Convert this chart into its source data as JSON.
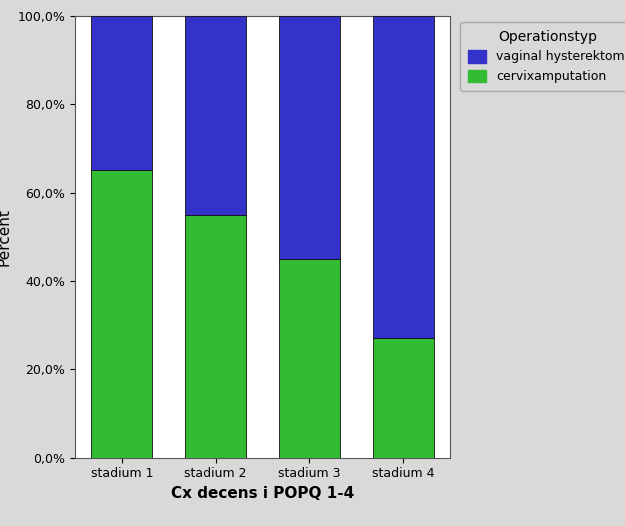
{
  "categories": [
    "stadium 1",
    "stadium 2",
    "stadium 3",
    "stadium 4"
  ],
  "cervix_values": [
    65.0,
    55.0,
    45.0,
    27.0
  ],
  "vaginal_values": [
    35.0,
    45.0,
    55.0,
    73.0
  ],
  "cervix_color": "#33bb33",
  "vaginal_color": "#3333cc",
  "bar_edge_color": "#111111",
  "bar_edge_width": 0.6,
  "bar_width": 0.65,
  "ylabel": "Percent",
  "xlabel": "Cx decens i POPQ 1-4",
  "yticks": [
    0,
    20,
    40,
    60,
    80,
    100
  ],
  "ytick_labels": [
    "0,0%",
    "20,0%",
    "40,0%",
    "60,0%",
    "80,0%",
    "100,0%"
  ],
  "legend_title": "Operationstyp",
  "legend_label_vaginal": "vaginal hysterektomi",
  "legend_label_cervix": "cervixamputation",
  "outer_background_color": "#d9d9d9",
  "plot_bg_color": "#ffffff",
  "axis_label_fontsize": 11,
  "tick_fontsize": 9,
  "legend_fontsize": 9,
  "legend_title_fontsize": 10
}
